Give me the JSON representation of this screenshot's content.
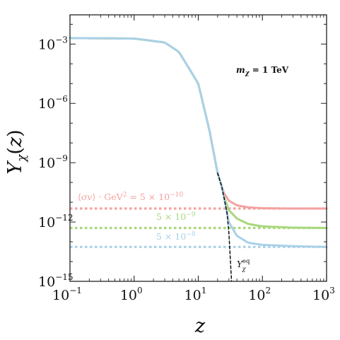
{
  "chart_data": {
    "type": "line",
    "title": "",
    "xlabel": "z",
    "ylabel": "Y_χ(z)",
    "x_scale": "log",
    "y_scale": "log",
    "xlim": [
      0.1,
      1000
    ],
    "ylim": [
      1e-15,
      0.03
    ],
    "grid": false,
    "x_ticks": [
      {
        "base": "10",
        "exp": "−1"
      },
      {
        "base": "10",
        "exp": "0"
      },
      {
        "base": "10",
        "exp": "1"
      },
      {
        "base": "10",
        "exp": "2"
      },
      {
        "base": "10",
        "exp": "3"
      }
    ],
    "y_ticks": [
      {
        "base": "10",
        "exp": "−3"
      },
      {
        "base": "10",
        "exp": "−6"
      },
      {
        "base": "10",
        "exp": "−9"
      },
      {
        "base": "10",
        "exp": "−12"
      },
      {
        "base": "10",
        "exp": "−15"
      }
    ],
    "mass_label": "m_χ = 1 TeV",
    "sigma_label_prefix": "⟨σv⟩ · GeV² = ",
    "series": [
      {
        "name": "5 × 10⁻¹⁰",
        "color": "#f4a2a0",
        "style": "solid",
        "x": [
          0.1,
          1,
          3,
          5,
          10,
          15,
          20,
          23,
          25,
          30,
          40,
          60,
          100,
          300,
          1000
        ],
        "y": [
          0.002,
          0.0019,
          0.0012,
          0.0004,
          1e-05,
          4e-08,
          3e-10,
          7e-11,
          3e-11,
          1.2e-11,
          7e-12,
          5.5e-12,
          5e-12,
          4.8e-12,
          4.8e-12
        ]
      },
      {
        "name": "5 × 10⁻⁹",
        "color": "#a8d87c",
        "style": "solid",
        "x": [
          0.1,
          1,
          3,
          5,
          10,
          15,
          20,
          23,
          25,
          30,
          40,
          60,
          100,
          300,
          1000
        ],
        "y": [
          0.002,
          0.0019,
          0.0012,
          0.0004,
          1e-05,
          4e-08,
          3e-10,
          7e-11,
          2e-11,
          4e-12,
          1.5e-12,
          8e-13,
          6e-13,
          5.2e-13,
          5e-13
        ]
      },
      {
        "name": "5 × 10⁻⁸",
        "color": "#a9d1e8",
        "style": "solid",
        "x": [
          0.1,
          1,
          3,
          5,
          10,
          15,
          20,
          23,
          25,
          28,
          30,
          40,
          60,
          100,
          300,
          1000
        ],
        "y": [
          0.002,
          0.0019,
          0.0012,
          0.0004,
          1e-05,
          4e-08,
          3e-10,
          7e-11,
          2e-11,
          3e-12,
          1e-12,
          2e-13,
          9e-14,
          7e-14,
          6e-14,
          5.5e-14
        ]
      },
      {
        "name": "Y_χ^eq",
        "color": "#000000",
        "style": "dashed",
        "x": [
          20,
          23,
          25,
          28,
          30,
          33
        ],
        "y": [
          3e-10,
          7e-11,
          2e-11,
          3e-12,
          3e-13,
          1e-15
        ]
      },
      {
        "name": "asymptote 5 × 10⁻¹⁰",
        "color": "#f4a2a0",
        "style": "dotted",
        "x": [
          0.1,
          1000
        ],
        "y": [
          4.8e-12,
          4.8e-12
        ]
      },
      {
        "name": "asymptote 5 × 10⁻⁹",
        "color": "#a8d87c",
        "style": "dotted",
        "x": [
          0.1,
          1000
        ],
        "y": [
          5e-13,
          5e-13
        ]
      },
      {
        "name": "asymptote 5 × 10⁻⁸",
        "color": "#a9d1e8",
        "style": "dotted",
        "x": [
          0.1,
          1000
        ],
        "y": [
          5.5e-14,
          5.5e-14
        ]
      }
    ]
  }
}
